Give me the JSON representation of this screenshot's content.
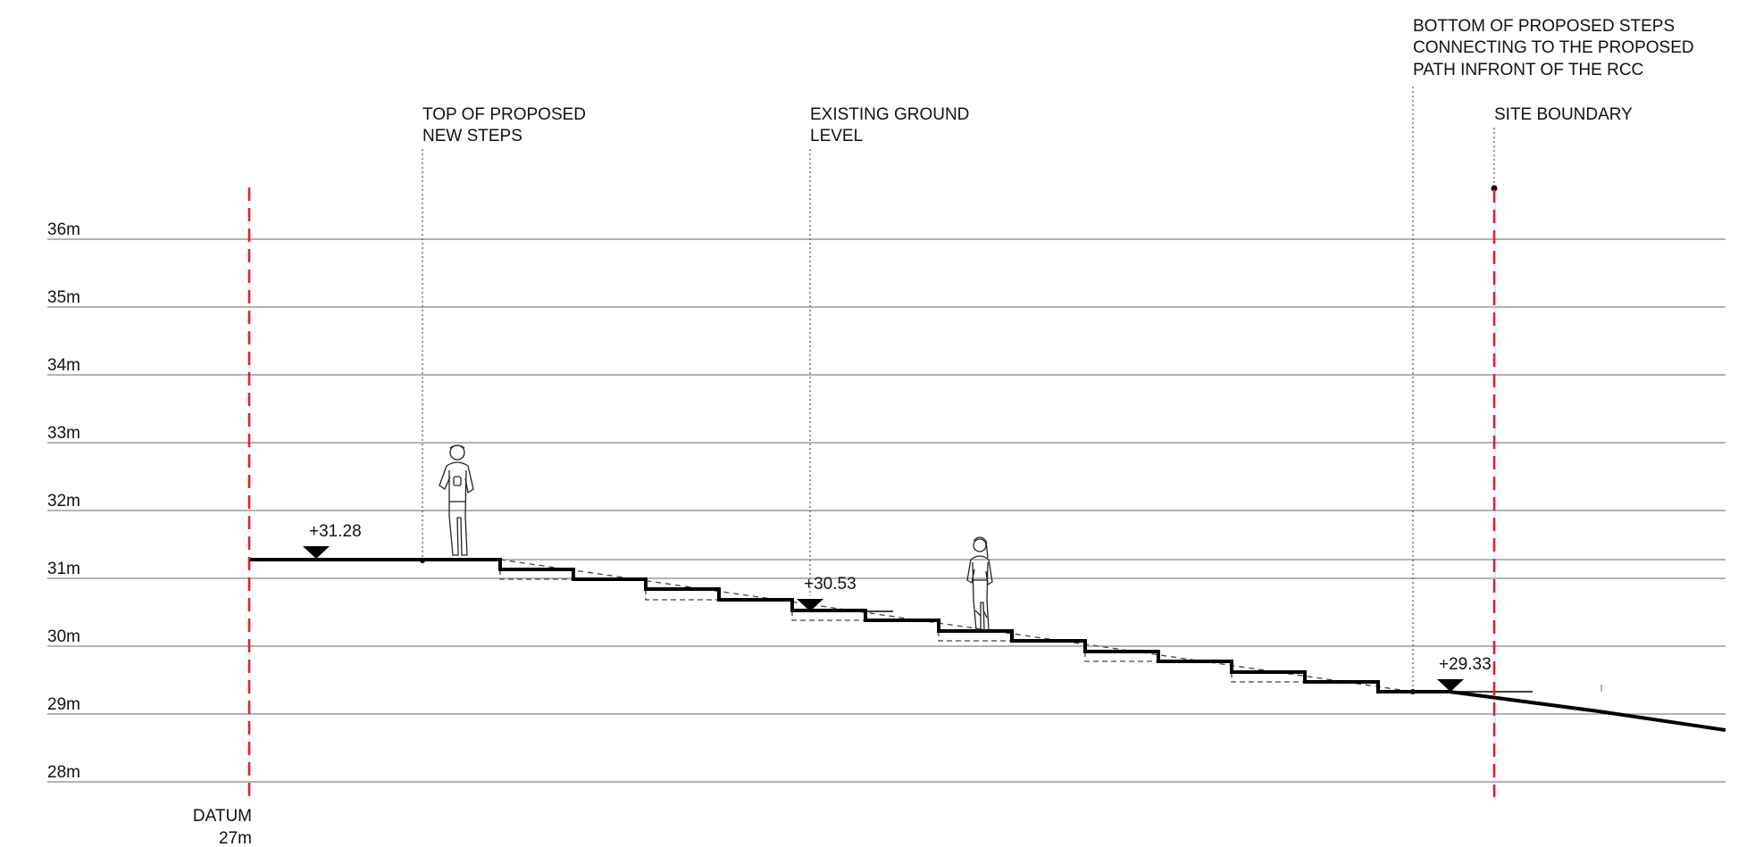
{
  "levels": {
    "labels": [
      "36m",
      "35m",
      "34m",
      "33m",
      "32m",
      "31m",
      "30m",
      "29m",
      "28m"
    ],
    "values": [
      36,
      35,
      34,
      33,
      32,
      31,
      30,
      29,
      28
    ],
    "datum_line1": "DATUM",
    "datum_line2": "27m",
    "datum_value": 27
  },
  "annotations": {
    "top_steps": [
      "TOP OF PROPOSED",
      "NEW STEPS"
    ],
    "existing_ground": [
      "EXISTING GROUND",
      "LEVEL"
    ],
    "bottom_steps": [
      "BOTTOM OF PROPOSED STEPS",
      "CONNECTING TO THE PROPOSED",
      "PATH INFRONT OF THE RCC"
    ],
    "site_boundary": [
      "SITE BOUNDARY"
    ]
  },
  "spot_levels": [
    {
      "label": "+31.28",
      "value": 31.28
    },
    {
      "label": "+30.53",
      "value": 30.53
    },
    {
      "label": "+29.33",
      "value": 29.33
    }
  ],
  "colors": {
    "boundary": "#e0202a",
    "grid": "#9a9a9a",
    "profile": "#000000"
  },
  "figures": [
    "standing-person-icon",
    "walking-person-icon"
  ]
}
